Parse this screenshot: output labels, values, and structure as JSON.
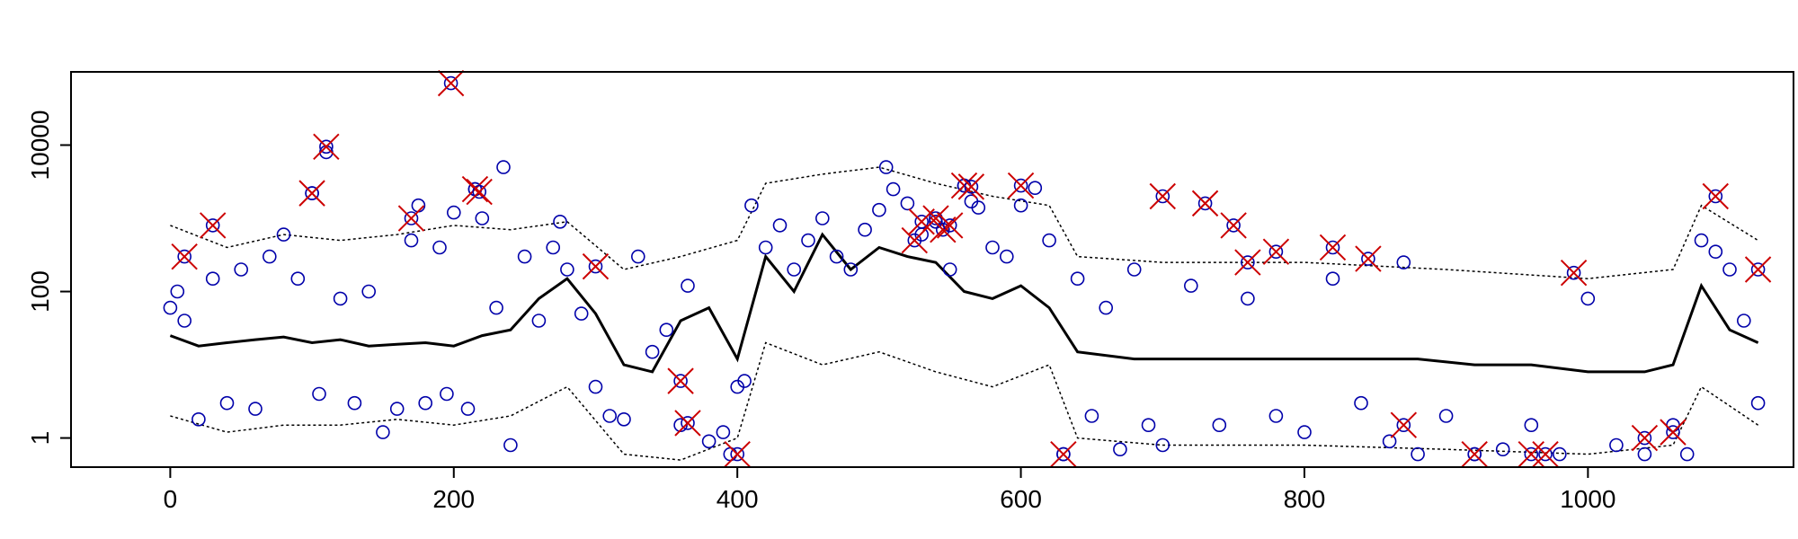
{
  "chart_data": {
    "type": "line",
    "title": "",
    "xlabel": "",
    "ylabel": "",
    "xlim": [
      -70,
      1145
    ],
    "ylim": [
      0.4,
      100000
    ],
    "y_scale": "log",
    "x_ticks": [
      0,
      200,
      400,
      600,
      800,
      1000
    ],
    "x_tick_labels": [
      "0",
      "200",
      "400",
      "600",
      "800",
      "1000"
    ],
    "y_ticks": [
      1,
      100,
      10000
    ],
    "y_tick_labels": [
      "1",
      "100",
      "10000"
    ],
    "grid": false,
    "legend": "none",
    "colors": {
      "center_line": "#000000",
      "band_lines": "#000000",
      "observed_points": "#0000aa",
      "outlier_marks": "#cc0000",
      "axes": "#000000"
    },
    "center_line": {
      "x": [
        0,
        20,
        40,
        60,
        80,
        100,
        120,
        140,
        160,
        180,
        200,
        220,
        240,
        260,
        280,
        300,
        320,
        340,
        360,
        380,
        400,
        420,
        440,
        460,
        480,
        500,
        520,
        540,
        560,
        580,
        600,
        620,
        640,
        680,
        720,
        760,
        800,
        840,
        880,
        920,
        960,
        1000,
        1040,
        1060,
        1080,
        1100,
        1120
      ],
      "y": [
        25,
        18,
        20,
        22,
        24,
        20,
        22,
        18,
        19,
        20,
        18,
        25,
        30,
        80,
        150,
        50,
        10,
        8,
        40,
        60,
        12,
        300,
        100,
        600,
        200,
        400,
        300,
        250,
        100,
        80,
        120,
        60,
        15,
        12,
        12,
        12,
        12,
        12,
        12,
        10,
        10,
        8,
        8,
        10,
        120,
        30,
        20
      ]
    },
    "upper_band": {
      "x": [
        0,
        40,
        80,
        120,
        160,
        200,
        240,
        280,
        320,
        360,
        400,
        420,
        460,
        500,
        540,
        580,
        620,
        640,
        700,
        800,
        900,
        1000,
        1060,
        1080,
        1120
      ],
      "y": [
        800,
        400,
        600,
        500,
        600,
        800,
        700,
        900,
        200,
        300,
        500,
        3000,
        4000,
        5000,
        3000,
        2000,
        1500,
        300,
        250,
        250,
        200,
        150,
        200,
        1500,
        500
      ]
    },
    "lower_band": {
      "x": [
        0,
        40,
        80,
        120,
        160,
        200,
        240,
        280,
        320,
        360,
        400,
        420,
        460,
        500,
        540,
        580,
        620,
        640,
        700,
        800,
        900,
        1000,
        1060,
        1080,
        1120
      ],
      "y": [
        2,
        1.2,
        1.5,
        1.5,
        1.8,
        1.5,
        2,
        5,
        0.6,
        0.5,
        1,
        20,
        10,
        15,
        8,
        5,
        10,
        1,
        0.8,
        0.8,
        0.7,
        0.6,
        0.8,
        5,
        1.5
      ]
    },
    "observed_points": {
      "x": [
        0,
        5,
        10,
        20,
        30,
        40,
        50,
        60,
        70,
        80,
        90,
        100,
        105,
        110,
        120,
        130,
        140,
        150,
        160,
        170,
        175,
        180,
        190,
        195,
        200,
        210,
        215,
        220,
        230,
        235,
        240,
        250,
        260,
        270,
        275,
        280,
        290,
        300,
        310,
        320,
        330,
        340,
        350,
        360,
        365,
        380,
        390,
        395,
        400,
        405,
        410,
        420,
        430,
        440,
        450,
        460,
        470,
        480,
        490,
        500,
        505,
        510,
        520,
        530,
        540,
        550,
        560,
        565,
        570,
        580,
        590,
        600,
        610,
        620,
        630,
        640,
        650,
        660,
        670,
        680,
        690,
        700,
        720,
        740,
        760,
        780,
        800,
        820,
        840,
        860,
        870,
        880,
        900,
        920,
        940,
        960,
        980,
        1000,
        1020,
        1040,
        1060,
        1070,
        1080,
        1090,
        1100,
        1110,
        1120
      ],
      "y": [
        60,
        100,
        40,
        1.8,
        150,
        3,
        200,
        2.5,
        300,
        600,
        150,
        2200,
        4,
        8000,
        80,
        3,
        100,
        1.2,
        2.5,
        500,
        1500,
        3,
        400,
        4,
        1200,
        2.5,
        2500,
        1000,
        60,
        5000,
        0.8,
        300,
        40,
        400,
        900,
        200,
        50,
        5,
        2,
        1.8,
        300,
        15,
        30,
        1.5,
        120,
        0.9,
        1.2,
        0.6,
        5,
        6,
        1500,
        400,
        800,
        200,
        500,
        1000,
        300,
        200,
        700,
        1300,
        5000,
        2500,
        1600,
        600,
        900,
        200,
        2800,
        1700,
        1400,
        400,
        300,
        1500,
        2600,
        500,
        0.6,
        150,
        2,
        60,
        0.7,
        200,
        1.5,
        0.8,
        120,
        1.5,
        80,
        2,
        1.2,
        150,
        3,
        0.9,
        250,
        0.6,
        2,
        0.6,
        0.7,
        1.5,
        0.6,
        80,
        0.8,
        0.6,
        1.5,
        0.6,
        500,
        350,
        200,
        40,
        3
      ]
    },
    "outliers": {
      "x": [
        10,
        30,
        100,
        110,
        170,
        198,
        215,
        218,
        300,
        360,
        365,
        400,
        525,
        530,
        540,
        545,
        550,
        560,
        565,
        600,
        630,
        700,
        730,
        750,
        760,
        780,
        820,
        845,
        870,
        920,
        960,
        970,
        990,
        1040,
        1060,
        1090,
        1120
      ],
      "y": [
        300,
        800,
        2200,
        9500,
        1000,
        70000,
        2500,
        2300,
        220,
        6,
        1.6,
        0.6,
        500,
        900,
        1000,
        700,
        800,
        2800,
        2700,
        2800,
        0.6,
        2000,
        1600,
        800,
        250,
        350,
        400,
        280,
        1.5,
        0.6,
        0.6,
        0.6,
        180,
        1,
        1.2,
        2000,
        200
      ]
    }
  }
}
